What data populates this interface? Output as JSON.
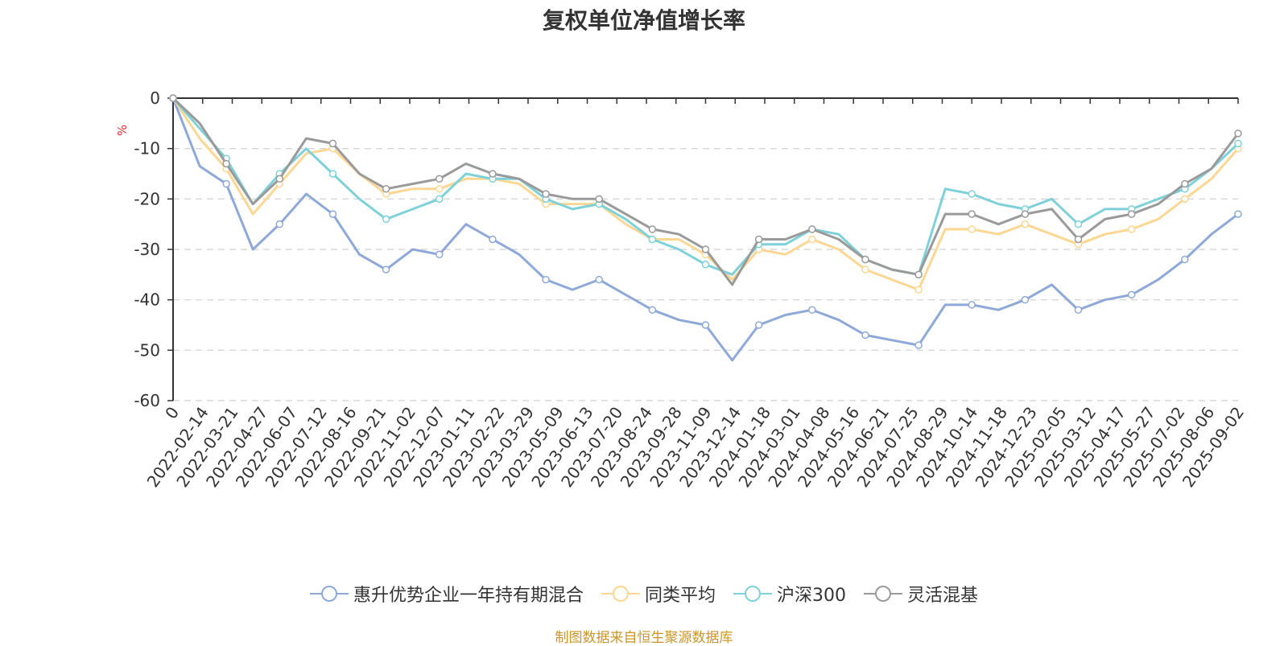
{
  "chart_data": {
    "type": "line",
    "title": "复权单位净值增长率",
    "ylabel": "%",
    "ylim": [
      -60,
      0
    ],
    "yticks": [
      0,
      -10,
      -20,
      -30,
      -40,
      -50,
      -60
    ],
    "x_tick_labels": [
      "0",
      "2022-02-14",
      "2022-03-21",
      "2022-04-27",
      "2022-06-07",
      "2022-07-12",
      "2022-08-16",
      "2022-09-21",
      "2022-11-02",
      "2022-12-07",
      "2023-01-11",
      "2023-02-22",
      "2023-03-29",
      "2023-05-09",
      "2023-06-13",
      "2023-07-20",
      "2023-08-24",
      "2023-09-28",
      "2023-11-09",
      "2023-12-14",
      "2024-01-18",
      "2024-03-01",
      "2024-04-08",
      "2024-05-16",
      "2024-06-21",
      "2024-07-25",
      "2024-08-29",
      "2024-10-14",
      "2024-11-18",
      "2024-12-23",
      "2025-02-05",
      "2025-03-12",
      "2025-04-17",
      "2025-05-27",
      "2025-07-02",
      "2025-08-06",
      "2025-09-02"
    ],
    "grid": true,
    "legend_position": "bottom",
    "series": [
      {
        "name": "惠升优势企业一年持有期混合",
        "color": "#8ea9d8",
        "values": [
          0,
          -13.5,
          -17,
          -30,
          -25,
          -19,
          -23,
          -31,
          -34,
          -30,
          -31,
          -25,
          -28,
          -31,
          -36,
          -38,
          -36,
          -39,
          -42,
          -44,
          -45,
          -52,
          -45,
          -43,
          -42,
          -44,
          -47,
          -48,
          -49,
          -41,
          -41,
          -42,
          -40,
          -37,
          -42,
          -40,
          -39,
          -36,
          -32,
          -27,
          -23
        ]
      },
      {
        "name": "同类平均",
        "color": "#fbd793",
        "values": [
          0,
          -8,
          -14,
          -23,
          -17,
          -11,
          -10,
          -15,
          -19,
          -18,
          -18,
          -16,
          -16,
          -17,
          -21,
          -21,
          -21,
          -25,
          -28,
          -28,
          -31,
          -36,
          -30,
          -31,
          -28,
          -30,
          -34,
          -36,
          -38,
          -26,
          -26,
          -27,
          -25,
          -27,
          -29,
          -27,
          -26,
          -24,
          -20,
          -16,
          -10
        ]
      },
      {
        "name": "沪深300",
        "color": "#7fd1d9",
        "values": [
          0,
          -6,
          -12,
          -21,
          -15,
          -10,
          -15,
          -20,
          -24,
          -22,
          -20,
          -15,
          -16,
          -16,
          -20,
          -22,
          -21,
          -24,
          -28,
          -30,
          -33,
          -35,
          -29,
          -29,
          -26,
          -27,
          -32,
          -34,
          -35,
          -18,
          -19,
          -21,
          -22,
          -20,
          -25,
          -22,
          -22,
          -20,
          -18,
          -14,
          -9
        ]
      },
      {
        "name": "灵活混基",
        "color": "#9a9a9a",
        "values": [
          0,
          -5,
          -13,
          -21,
          -16,
          -8,
          -9,
          -15,
          -18,
          -17,
          -16,
          -13,
          -15,
          -16,
          -19,
          -20,
          -20,
          -23,
          -26,
          -27,
          -30,
          -37,
          -28,
          -28,
          -26,
          -28,
          -32,
          -34,
          -35,
          -23,
          -23,
          -25,
          -23,
          -22,
          -28,
          -24,
          -23,
          -21,
          -17,
          -14,
          -7
        ]
      }
    ]
  },
  "legend_items": [
    "惠升优势企业一年持有期混合",
    "同类平均",
    "沪深300",
    "灵活混基"
  ],
  "source_text": "制图数据来自恒生聚源数据库"
}
